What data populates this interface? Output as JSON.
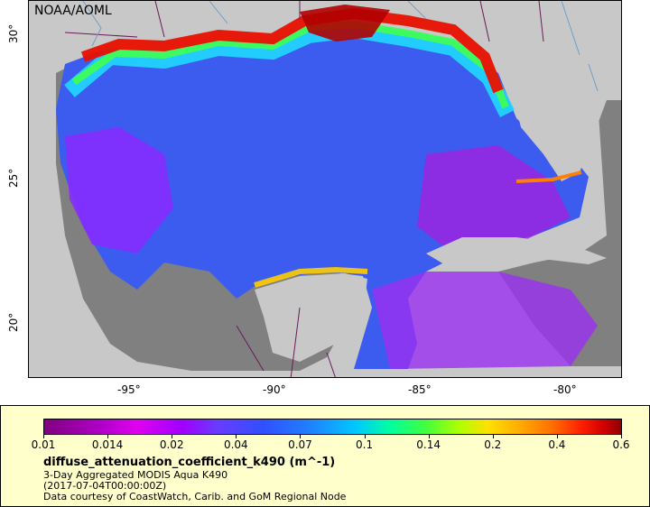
{
  "map": {
    "agency_label": "NOAA/AOML",
    "lat_labels": [
      "30°",
      "25°",
      "20°"
    ],
    "lon_labels": [
      "-95°",
      "-90°",
      "-85°",
      "-80°"
    ],
    "colors": {
      "land": "#c8c8c8",
      "no_data": "#808080",
      "border": "#6a1a5a",
      "river": "#6e9ec8"
    }
  },
  "legend": {
    "tick_labels": [
      "0.01",
      "0.014",
      "0.02",
      "0.04",
      "0.07",
      "0.1",
      "0.14",
      "0.2",
      "0.4",
      "0.6"
    ],
    "variable": "diffuse_attenuation_coefficient_k490 (m^-1)",
    "description": "3-Day Aggregated MODIS Aqua K490",
    "time": "(2017-07-04T00:00:00Z)",
    "credit": "Data courtesy of CoastWatch, Carib. and GoM Regional Node"
  }
}
